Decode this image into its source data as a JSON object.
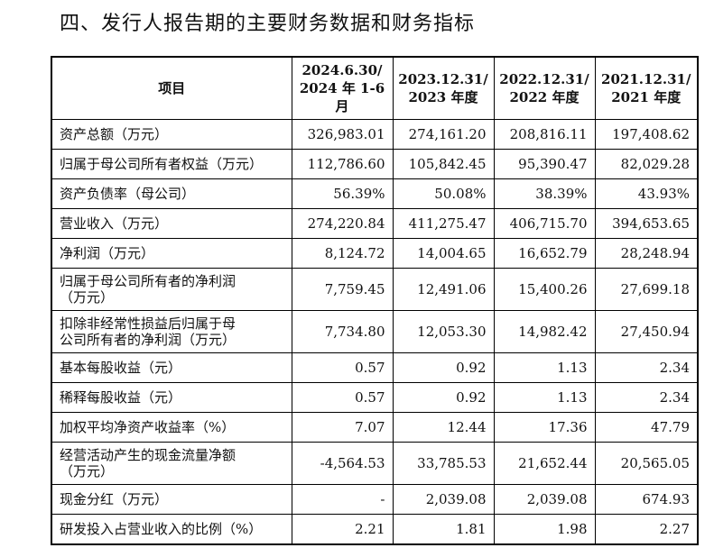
{
  "title": "四、发行人报告期的主要财务数据和财务指标",
  "table": {
    "header": {
      "item": "项目",
      "periods": [
        [
          "2024.6.30/",
          "2024 年 1-6",
          "月"
        ],
        [
          "2023.12.31/",
          "2023 年度"
        ],
        [
          "2022.12.31/",
          "2022 年度"
        ],
        [
          "2021.12.31/",
          "2021 年度"
        ]
      ]
    },
    "rows": [
      {
        "label": [
          "资产总额（万元）"
        ],
        "values": [
          "326,983.01",
          "274,161.20",
          "208,816.11",
          "197,408.62"
        ]
      },
      {
        "label": [
          "归属于母公司所有者权益（万元）"
        ],
        "values": [
          "112,786.60",
          "105,842.45",
          "95,390.47",
          "82,029.28"
        ]
      },
      {
        "label": [
          "资产负债率（母公司）"
        ],
        "values": [
          "56.39%",
          "50.08%",
          "38.39%",
          "43.93%"
        ]
      },
      {
        "label": [
          "营业收入（万元）"
        ],
        "values": [
          "274,220.84",
          "411,275.47",
          "406,715.70",
          "394,653.65"
        ]
      },
      {
        "label": [
          "净利润（万元）"
        ],
        "values": [
          "8,124.72",
          "14,004.65",
          "16,652.79",
          "28,248.94"
        ]
      },
      {
        "label": [
          "归属于母公司所有者的净利润",
          "（万元）"
        ],
        "values": [
          "7,759.45",
          "12,491.06",
          "15,400.26",
          "27,699.18"
        ]
      },
      {
        "label": [
          "扣除非经常性损益后归属于母",
          "公司所有者的净利润（万元）"
        ],
        "values": [
          "7,734.80",
          "12,053.30",
          "14,982.42",
          "27,450.94"
        ]
      },
      {
        "label": [
          "基本每股收益（元）"
        ],
        "values": [
          "0.57",
          "0.92",
          "1.13",
          "2.34"
        ]
      },
      {
        "label": [
          "稀释每股收益（元）"
        ],
        "values": [
          "0.57",
          "0.92",
          "1.13",
          "2.34"
        ]
      },
      {
        "label": [
          "加权平均净资产收益率（%）"
        ],
        "values": [
          "7.07",
          "12.44",
          "17.36",
          "47.79"
        ]
      },
      {
        "label": [
          "经营活动产生的现金流量净额",
          "（万元）"
        ],
        "values": [
          "-4,564.53",
          "33,785.53",
          "21,652.44",
          "20,565.05"
        ]
      },
      {
        "label": [
          "现金分红（万元）"
        ],
        "values": [
          "-",
          "2,039.08",
          "2,039.08",
          "674.93"
        ]
      },
      {
        "label": [
          "研发投入占营业收入的比例（%）"
        ],
        "values": [
          "2.21",
          "1.81",
          "1.98",
          "2.27"
        ]
      }
    ]
  }
}
